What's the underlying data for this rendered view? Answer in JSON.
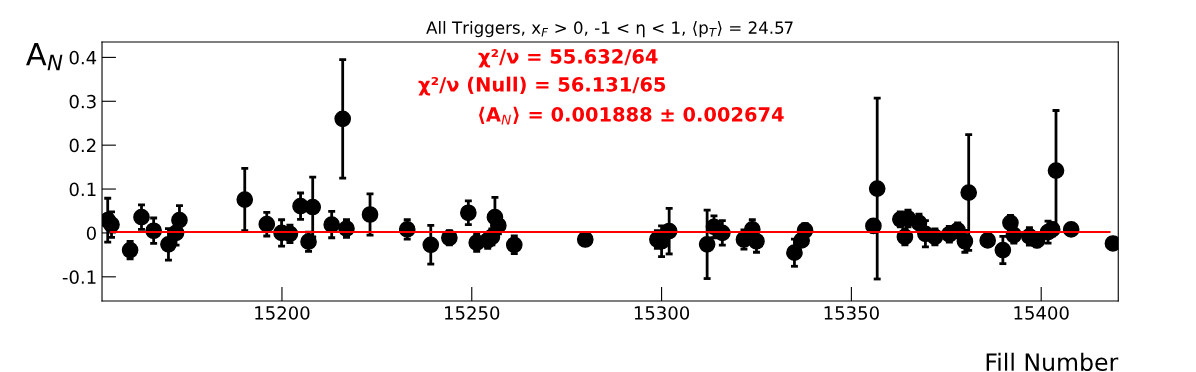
{
  "chart_data": {
    "type": "scatter",
    "title": "All Triggers, x$_{F}$ > 0, -1 < η < 1, ⟨p$_{T}$⟩ = 24.57",
    "xlabel": "Fill Number",
    "ylabel": "A$_{N}$",
    "annotations": [
      "χ²/ν = 55.632/64",
      "χ²/ν (Null) = 56.131/65",
      "⟨A$_{N}$⟩ = 0.001888 ± 0.002674"
    ],
    "xlim": [
      15152.6,
      15420.3
    ],
    "ylim": [
      -0.155,
      0.435
    ],
    "xticks": [
      15200,
      15250,
      15300,
      15350,
      15400
    ],
    "yticks": [
      -0.1,
      0,
      0.1,
      0.2,
      0.3,
      0.4
    ],
    "grid": false,
    "legend": false,
    "series": [
      {
        "color": "#000000",
        "marker": "circle",
        "x": [
          15154.1,
          15155.1,
          15160.0,
          15163.0,
          15166.2,
          15170.1,
          15172.1,
          15173.0,
          15190.2,
          15196.0,
          15199.9,
          15202.1,
          15204.9,
          15207.0,
          15208.1,
          15213.1,
          15216.0,
          15217.0,
          15223.2,
          15233.0,
          15239.2,
          15244.1,
          15249.1,
          15251.3,
          15254.2,
          15255.3,
          15256.1,
          15257.0,
          15261.2,
          15279.9,
          15298.9,
          15300.0,
          15302.0,
          15312.0,
          15313.8,
          15316.0,
          15321.7,
          15323.9,
          15325.0,
          15335.0,
          15336.9,
          15337.8,
          15355.8,
          15356.8,
          15362.9,
          15364.1,
          15364.9,
          15367.8,
          15369.5,
          15372.0,
          15375.8,
          15378.0,
          15379.9,
          15380.9,
          15385.9,
          15389.9,
          15391.9,
          15392.8,
          15396.9,
          15398.9,
          15401.8,
          15402.9,
          15403.9,
          15407.9,
          15418.9
        ],
        "values": [
          0.029,
          0.019,
          -0.039,
          0.036,
          0.005,
          -0.026,
          0.0,
          0.029,
          0.076,
          0.02,
          0.0,
          -0.002,
          0.061,
          -0.02,
          0.059,
          0.019,
          0.26,
          0.01,
          0.042,
          0.008,
          -0.027,
          -0.011,
          0.046,
          -0.022,
          -0.017,
          -0.009,
          0.036,
          0.017,
          -0.027,
          -0.015,
          -0.015,
          -0.019,
          0.004,
          -0.026,
          0.014,
          0.0,
          -0.015,
          0.008,
          -0.019,
          -0.045,
          -0.017,
          0.006,
          0.016,
          0.101,
          0.031,
          -0.009,
          0.033,
          0.023,
          -0.002,
          -0.009,
          -0.003,
          0.006,
          -0.019,
          0.092,
          -0.017,
          -0.039,
          0.023,
          -0.005,
          -0.008,
          -0.017,
          0.002,
          0.008,
          0.142,
          0.008,
          -0.024
        ],
        "errors": [
          0.05,
          0.029,
          0.02,
          0.028,
          0.029,
          0.036,
          0.028,
          0.033,
          0.071,
          0.027,
          0.03,
          0.02,
          0.03,
          0.022,
          0.068,
          0.03,
          0.135,
          0.02,
          0.047,
          0.022,
          0.044,
          0.016,
          0.027,
          0.02,
          0.018,
          0.018,
          0.045,
          0.019,
          0.02,
          0.005,
          0.02,
          0.035,
          0.052,
          0.078,
          0.025,
          0.028,
          0.022,
          0.022,
          0.025,
          0.031,
          0.012,
          0.015,
          0.014,
          0.206,
          0.017,
          0.018,
          0.019,
          0.02,
          0.03,
          0.018,
          0.018,
          0.017,
          0.025,
          0.132,
          0.013,
          0.031,
          0.017,
          0.018,
          0.02,
          0.015,
          0.025,
          0.015,
          0.137,
          0.008,
          0.01
        ]
      },
      {
        "type": "line",
        "color": "#ff0000",
        "x": [
          15155,
          15418
        ],
        "values": [
          0.002,
          0.002
        ]
      }
    ]
  }
}
